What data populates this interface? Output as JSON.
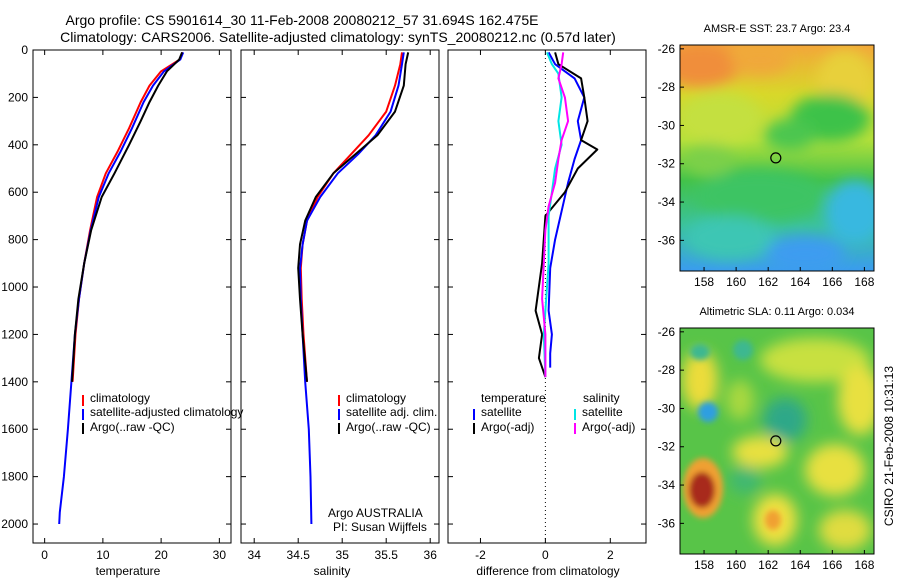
{
  "header": {
    "title_line1": "Argo profile: CS 5901614_30 11-Feb-2008 20080212_57 31.694S 162.475E",
    "title_line2": "Climatology: CARS2006. Satellite-adjusted climatology: synTS_20080212.nc (0.57d later)"
  },
  "colors": {
    "red": "#ff0000",
    "blue": "#0000ff",
    "black": "#000000",
    "cyan": "#00e5e5",
    "magenta": "#ff00ff"
  },
  "chart_data": [
    {
      "type": "line",
      "id": "temperature",
      "xlabel": "temperature",
      "xlim": [
        -2,
        32
      ],
      "ylim": [
        0,
        2080
      ],
      "xticks": [
        "0",
        "10",
        "20",
        "30"
      ],
      "xtick_values": [
        0,
        10,
        20,
        30
      ],
      "yticks": [
        "0",
        "200",
        "400",
        "600",
        "800",
        "1000",
        "1200",
        "1400",
        "1600",
        "1800",
        "2000"
      ],
      "ytick_values": [
        0,
        200,
        400,
        600,
        800,
        1000,
        1200,
        1400,
        1600,
        1800,
        2000
      ],
      "legend": [
        "climatology",
        "satellite-adjusted climatology",
        "Argo(..raw -QC)"
      ],
      "series": [
        {
          "name": "climatology",
          "color": "red",
          "points": [
            [
              23.7,
              10
            ],
            [
              23.2,
              40
            ],
            [
              20,
              90
            ],
            [
              18,
              150
            ],
            [
              16.5,
              220
            ],
            [
              14.5,
              330
            ],
            [
              12.5,
              430
            ],
            [
              10.5,
              520
            ],
            [
              9,
              620
            ],
            [
              7.8,
              760
            ],
            [
              6.8,
              900
            ],
            [
              5.9,
              1050
            ],
            [
              5.3,
              1200
            ],
            [
              4.8,
              1400
            ]
          ]
        },
        {
          "name": "satellite-adjusted climatology",
          "color": "blue",
          "points": [
            [
              23.8,
              10
            ],
            [
              23.3,
              40
            ],
            [
              20.5,
              90
            ],
            [
              18.6,
              150
            ],
            [
              17,
              220
            ],
            [
              15,
              330
            ],
            [
              13,
              430
            ],
            [
              11,
              520
            ],
            [
              9.3,
              620
            ],
            [
              7.9,
              760
            ],
            [
              6.8,
              900
            ],
            [
              5.9,
              1050
            ],
            [
              5.2,
              1200
            ],
            [
              4.6,
              1400
            ],
            [
              4,
              1600
            ],
            [
              3.3,
              1800
            ],
            [
              2.6,
              1950
            ],
            [
              2.5,
              2000
            ]
          ]
        },
        {
          "name": "Argo(..raw -QC)",
          "color": "black",
          "points": [
            [
              23.6,
              10
            ],
            [
              23.1,
              40
            ],
            [
              21,
              90
            ],
            [
              19.5,
              150
            ],
            [
              18,
              220
            ],
            [
              16.5,
              300
            ],
            [
              14.5,
              400
            ],
            [
              12,
              520
            ],
            [
              9.8,
              620
            ],
            [
              8,
              760
            ],
            [
              6.8,
              900
            ],
            [
              5.8,
              1050
            ],
            [
              5.2,
              1200
            ],
            [
              4.7,
              1400
            ]
          ]
        }
      ]
    },
    {
      "type": "line",
      "id": "salinity",
      "xlabel": "salinity",
      "xlim": [
        33.85,
        36.1
      ],
      "ylim": [
        0,
        2080
      ],
      "xticks": [
        "34",
        "34.5",
        "35",
        "35.5",
        "36"
      ],
      "xtick_values": [
        34,
        34.5,
        35,
        35.5,
        36
      ],
      "legend": [
        "climatology",
        "satellite adj. clim.",
        "Argo(..raw -QC)"
      ],
      "annotation": [
        "Argo AUSTRALIA",
        "PI: Susan Wijffels"
      ],
      "series": [
        {
          "name": "climatology",
          "color": "red",
          "points": [
            [
              35.68,
              10
            ],
            [
              35.66,
              60
            ],
            [
              35.6,
              150
            ],
            [
              35.5,
              260
            ],
            [
              35.3,
              360
            ],
            [
              35.1,
              440
            ],
            [
              34.9,
              520
            ],
            [
              34.72,
              620
            ],
            [
              34.6,
              720
            ],
            [
              34.55,
              820
            ],
            [
              34.53,
              920
            ],
            [
              34.54,
              1050
            ],
            [
              34.56,
              1200
            ],
            [
              34.6,
              1400
            ]
          ]
        },
        {
          "name": "satellite adj. clim.",
          "color": "blue",
          "points": [
            [
              35.7,
              10
            ],
            [
              35.68,
              60
            ],
            [
              35.64,
              150
            ],
            [
              35.55,
              260
            ],
            [
              35.38,
              360
            ],
            [
              35.18,
              440
            ],
            [
              34.95,
              520
            ],
            [
              34.75,
              620
            ],
            [
              34.6,
              720
            ],
            [
              34.55,
              820
            ],
            [
              34.52,
              920
            ],
            [
              34.53,
              1050
            ],
            [
              34.55,
              1200
            ],
            [
              34.58,
              1400
            ],
            [
              34.62,
              1600
            ],
            [
              34.64,
              1800
            ],
            [
              34.65,
              2000
            ]
          ]
        },
        {
          "name": "Argo(..raw -QC)",
          "color": "black",
          "points": [
            [
              35.75,
              10
            ],
            [
              35.72,
              60
            ],
            [
              35.7,
              150
            ],
            [
              35.6,
              260
            ],
            [
              35.4,
              360
            ],
            [
              35.15,
              440
            ],
            [
              34.9,
              520
            ],
            [
              34.7,
              620
            ],
            [
              34.58,
              720
            ],
            [
              34.52,
              820
            ],
            [
              34.5,
              920
            ],
            [
              34.52,
              1050
            ],
            [
              34.55,
              1200
            ],
            [
              34.6,
              1400
            ]
          ]
        }
      ]
    },
    {
      "type": "line",
      "id": "difference",
      "xlabel": "difference from climatology",
      "xlim": [
        -3,
        3.1
      ],
      "ylim": [
        0,
        2080
      ],
      "xticks": [
        "-2",
        "0",
        "2"
      ],
      "xtick_values": [
        -2,
        0,
        2
      ],
      "legend_headers": [
        "temperature",
        "salinity"
      ],
      "legend": [
        "satellite",
        "Argo(-adj)",
        "satellite",
        "Argo(-adj)"
      ],
      "series": [
        {
          "name": "temperature satellite",
          "color": "blue",
          "points": [
            [
              0.1,
              10
            ],
            [
              0.3,
              60
            ],
            [
              0.9,
              120
            ],
            [
              1.2,
              200
            ],
            [
              1,
              300
            ],
            [
              1.1,
              380
            ],
            [
              0.9,
              460
            ],
            [
              0.7,
              560
            ],
            [
              0.5,
              680
            ],
            [
              0.3,
              800
            ],
            [
              0.15,
              920
            ],
            [
              0.1,
              1100
            ],
            [
              0.2,
              1200
            ],
            [
              0.15,
              1280
            ],
            [
              0.15,
              1340
            ]
          ]
        },
        {
          "name": "temperature Argo(-adj)",
          "color": "black",
          "points": [
            [
              0.3,
              10
            ],
            [
              0.4,
              60
            ],
            [
              1.1,
              120
            ],
            [
              1.2,
              200
            ],
            [
              1.3,
              300
            ],
            [
              1.1,
              380
            ],
            [
              1.6,
              420
            ],
            [
              1,
              500
            ],
            [
              0.6,
              600
            ],
            [
              0,
              700
            ],
            [
              -0.1,
              900
            ],
            [
              -0.3,
              1100
            ],
            [
              -0.1,
              1200
            ],
            [
              -0.2,
              1300
            ],
            [
              0,
              1380
            ]
          ]
        },
        {
          "name": "salinity satellite",
          "color": "cyan",
          "points": [
            [
              0.05,
              10
            ],
            [
              0.2,
              60
            ],
            [
              0.4,
              100
            ],
            [
              0.5,
              200
            ],
            [
              0.4,
              300
            ],
            [
              0.5,
              400
            ],
            [
              0.3,
              500
            ],
            [
              0.2,
              600
            ],
            [
              0.1,
              700
            ],
            [
              0.1,
              900
            ],
            [
              0,
              1100
            ],
            [
              -0.05,
              1200
            ],
            [
              0,
              1380
            ]
          ]
        },
        {
          "name": "salinity Argo(-adj)",
          "color": "magenta",
          "points": [
            [
              0.55,
              10
            ],
            [
              0.5,
              60
            ],
            [
              0.4,
              120
            ],
            [
              0.6,
              200
            ],
            [
              0.7,
              300
            ],
            [
              0.5,
              380
            ],
            [
              0.4,
              460
            ],
            [
              0.3,
              560
            ],
            [
              0.1,
              660
            ],
            [
              0,
              760
            ],
            [
              -0.05,
              900
            ],
            [
              -0.1,
              1050
            ],
            [
              0,
              1200
            ],
            [
              0,
              1380
            ]
          ]
        }
      ]
    },
    {
      "type": "heatmap",
      "id": "sst",
      "title": "AMSR-E SST: 23.7 Argo: 23.4",
      "xlim": [
        156.5,
        168.6
      ],
      "ylim": [
        -37.6,
        -25.8
      ],
      "xticks": [
        "158",
        "160",
        "162",
        "164",
        "166",
        "168"
      ],
      "xtick_values": [
        158,
        160,
        162,
        164,
        166,
        168
      ],
      "yticks": [
        "-26",
        "-28",
        "-30",
        "-32",
        "-34",
        "-36"
      ],
      "ytick_values": [
        -26,
        -28,
        -30,
        -32,
        -34,
        -36
      ],
      "marker": [
        162.475,
        -31.694
      ]
    },
    {
      "type": "heatmap",
      "id": "sla",
      "title": "Altimetric SLA: 0.11 Argo: 0.034",
      "xlim": [
        156.5,
        168.6
      ],
      "ylim": [
        -37.6,
        -25.8
      ],
      "xticks": [
        "158",
        "160",
        "162",
        "164",
        "166",
        "168"
      ],
      "xtick_values": [
        158,
        160,
        162,
        164,
        166,
        168
      ],
      "yticks": [
        "-26",
        "-28",
        "-30",
        "-32",
        "-34",
        "-36"
      ],
      "ytick_values": [
        -26,
        -28,
        -30,
        -32,
        -34,
        -36
      ],
      "marker": [
        162.475,
        -31.694
      ]
    }
  ],
  "footer": {
    "stamp": "CSIRO 21-Feb-2008 10:31:13"
  }
}
